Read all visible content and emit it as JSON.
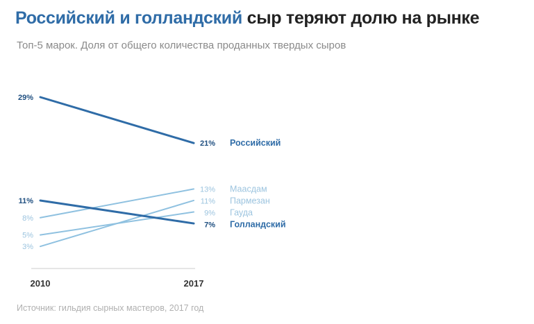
{
  "title": {
    "highlight": "Российский и голландский",
    "rest": " сыр теряют долю на рынке"
  },
  "subtitle": "Топ-5 марок. Доля от общего количества проданных твердых сыров",
  "source": "Источник: гильдия сырных мастеров, 2017 год",
  "chart_data": {
    "type": "line",
    "x": [
      "2010",
      "2017"
    ],
    "ylim": [
      0,
      30
    ],
    "grid": false,
    "series": [
      {
        "name": "Российский",
        "values": [
          29,
          21
        ],
        "start_label": "29%",
        "end_label": "21%",
        "color": "#2f6ca7",
        "emphasis": true
      },
      {
        "name": "Маасдам",
        "values": [
          8,
          13
        ],
        "start_label": "8%",
        "end_label": "13%",
        "color": "#8fc1e0",
        "emphasis": false
      },
      {
        "name": "Пармезан",
        "values": [
          3,
          11
        ],
        "start_label": "3%",
        "end_label": "11%",
        "color": "#8fc1e0",
        "emphasis": false
      },
      {
        "name": "Гауда",
        "values": [
          5,
          9
        ],
        "start_label": "5%",
        "end_label": "9%",
        "color": "#8fc1e0",
        "emphasis": false
      },
      {
        "name": "Голландский",
        "values": [
          11,
          7
        ],
        "start_label": "11%",
        "end_label": "7%",
        "color": "#2f6ca7",
        "emphasis": true
      }
    ]
  }
}
